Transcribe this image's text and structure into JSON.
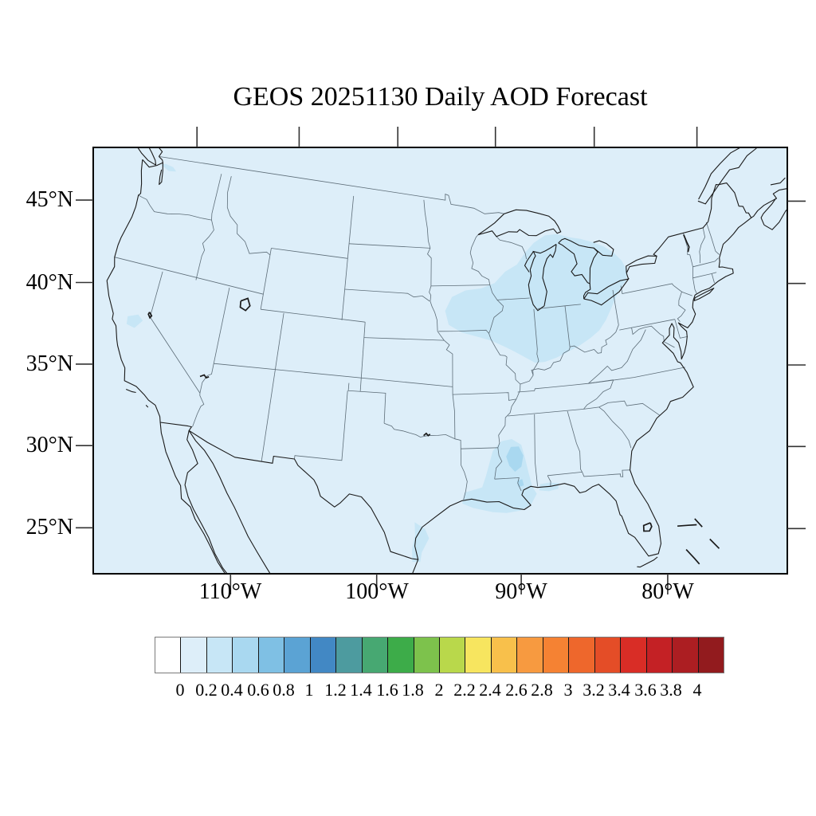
{
  "title": "GEOS 20251130 Daily AOD Forecast",
  "colors": {
    "canvas": "#ffffff",
    "map_background": "#ddeef9",
    "aod_level1": "#c7e6f6",
    "aod_level2": "#a9d8f0",
    "coastline": "#1a1a1a",
    "state_borders": "#5d6d78",
    "frame": "#000000",
    "ticks": "#333333"
  },
  "map": {
    "lat_ticks": {
      "labels": [
        "45°N",
        "40°N",
        "35°N",
        "30°N",
        "25°N"
      ],
      "values": [
        45,
        40,
        35,
        30,
        25
      ]
    },
    "lon_ticks": {
      "labels": [
        "110°W",
        "100°W",
        "90°W",
        "80°W"
      ],
      "values": [
        -110,
        -100,
        -90,
        -80
      ]
    },
    "top_tick_lons": [
      -120,
      -110,
      -100,
      -90,
      -80,
      -70
    ],
    "right_tick_lats": [
      45,
      40,
      35,
      30,
      25
    ]
  },
  "colorbar": {
    "tick_labels": [
      "0",
      "0.2",
      "0.4",
      "0.6",
      "0.8",
      "1",
      "1.2",
      "1.4",
      "1.6",
      "1.8",
      "2",
      "2.2",
      "2.4",
      "2.6",
      "2.8",
      "3",
      "3.2",
      "3.4",
      "3.6",
      "3.8",
      "4"
    ],
    "cell_colors": [
      "#ffffff",
      "#ddeef9",
      "#c7e6f6",
      "#a9d8f0",
      "#7fc0e4",
      "#5ba3d4",
      "#4288c4",
      "#4d9b9f",
      "#47a872",
      "#3dac49",
      "#7dc24c",
      "#b9d84b",
      "#f7e55f",
      "#f8c04b",
      "#f79a40",
      "#f58233",
      "#ee672c",
      "#e44d27",
      "#d92d26",
      "#c42125",
      "#ac1e22",
      "#921b1e"
    ]
  },
  "chart_data": {
    "type": "heatmap",
    "title": "GEOS 20251130 Daily AOD Forecast",
    "variable": "AOD",
    "map_extent": "contiguous United States with southern Canada and northern Mexico",
    "x_axis": {
      "ticks": [
        "110°W",
        "100°W",
        "90°W",
        "80°W"
      ]
    },
    "y_axis": {
      "ticks": [
        "45°N",
        "40°N",
        "35°N",
        "30°N",
        "25°N"
      ]
    },
    "legend_position": "bottom",
    "colorbar_levels": [
      0,
      0.2,
      0.4,
      0.6,
      0.8,
      1,
      1.2,
      1.4,
      1.6,
      1.8,
      2,
      2.2,
      2.4,
      2.6,
      2.8,
      3,
      3.2,
      3.4,
      3.6,
      3.8,
      4
    ],
    "regions": [
      {
        "area": "most of CONUS and surrounding ocean",
        "aod": "0-0.2"
      },
      {
        "area": "Midwest and Great Lakes (E Iowa, Illinois, Indiana, Michigan, W Ohio, Lakes Michigan/Huron/Erie, S Ontario)",
        "aod": "0.2-0.4"
      },
      {
        "area": "Lower Mississippi valley and Gulf Coast (E Louisiana, Mississippi, coastal Alabama/Florida panhandle)",
        "aod": "0.2-0.4"
      },
      {
        "area": "central Mississippi core",
        "aod": "0.4-0.6"
      },
      {
        "area": "south Texas coastline strip",
        "aod": "0.2-0.4"
      },
      {
        "area": "northwest Washington (Puget Sound lowlands)",
        "aod": "0.2-0.4"
      },
      {
        "area": "central California / Sierra foothills",
        "aod": "0.2-0.4"
      }
    ]
  }
}
